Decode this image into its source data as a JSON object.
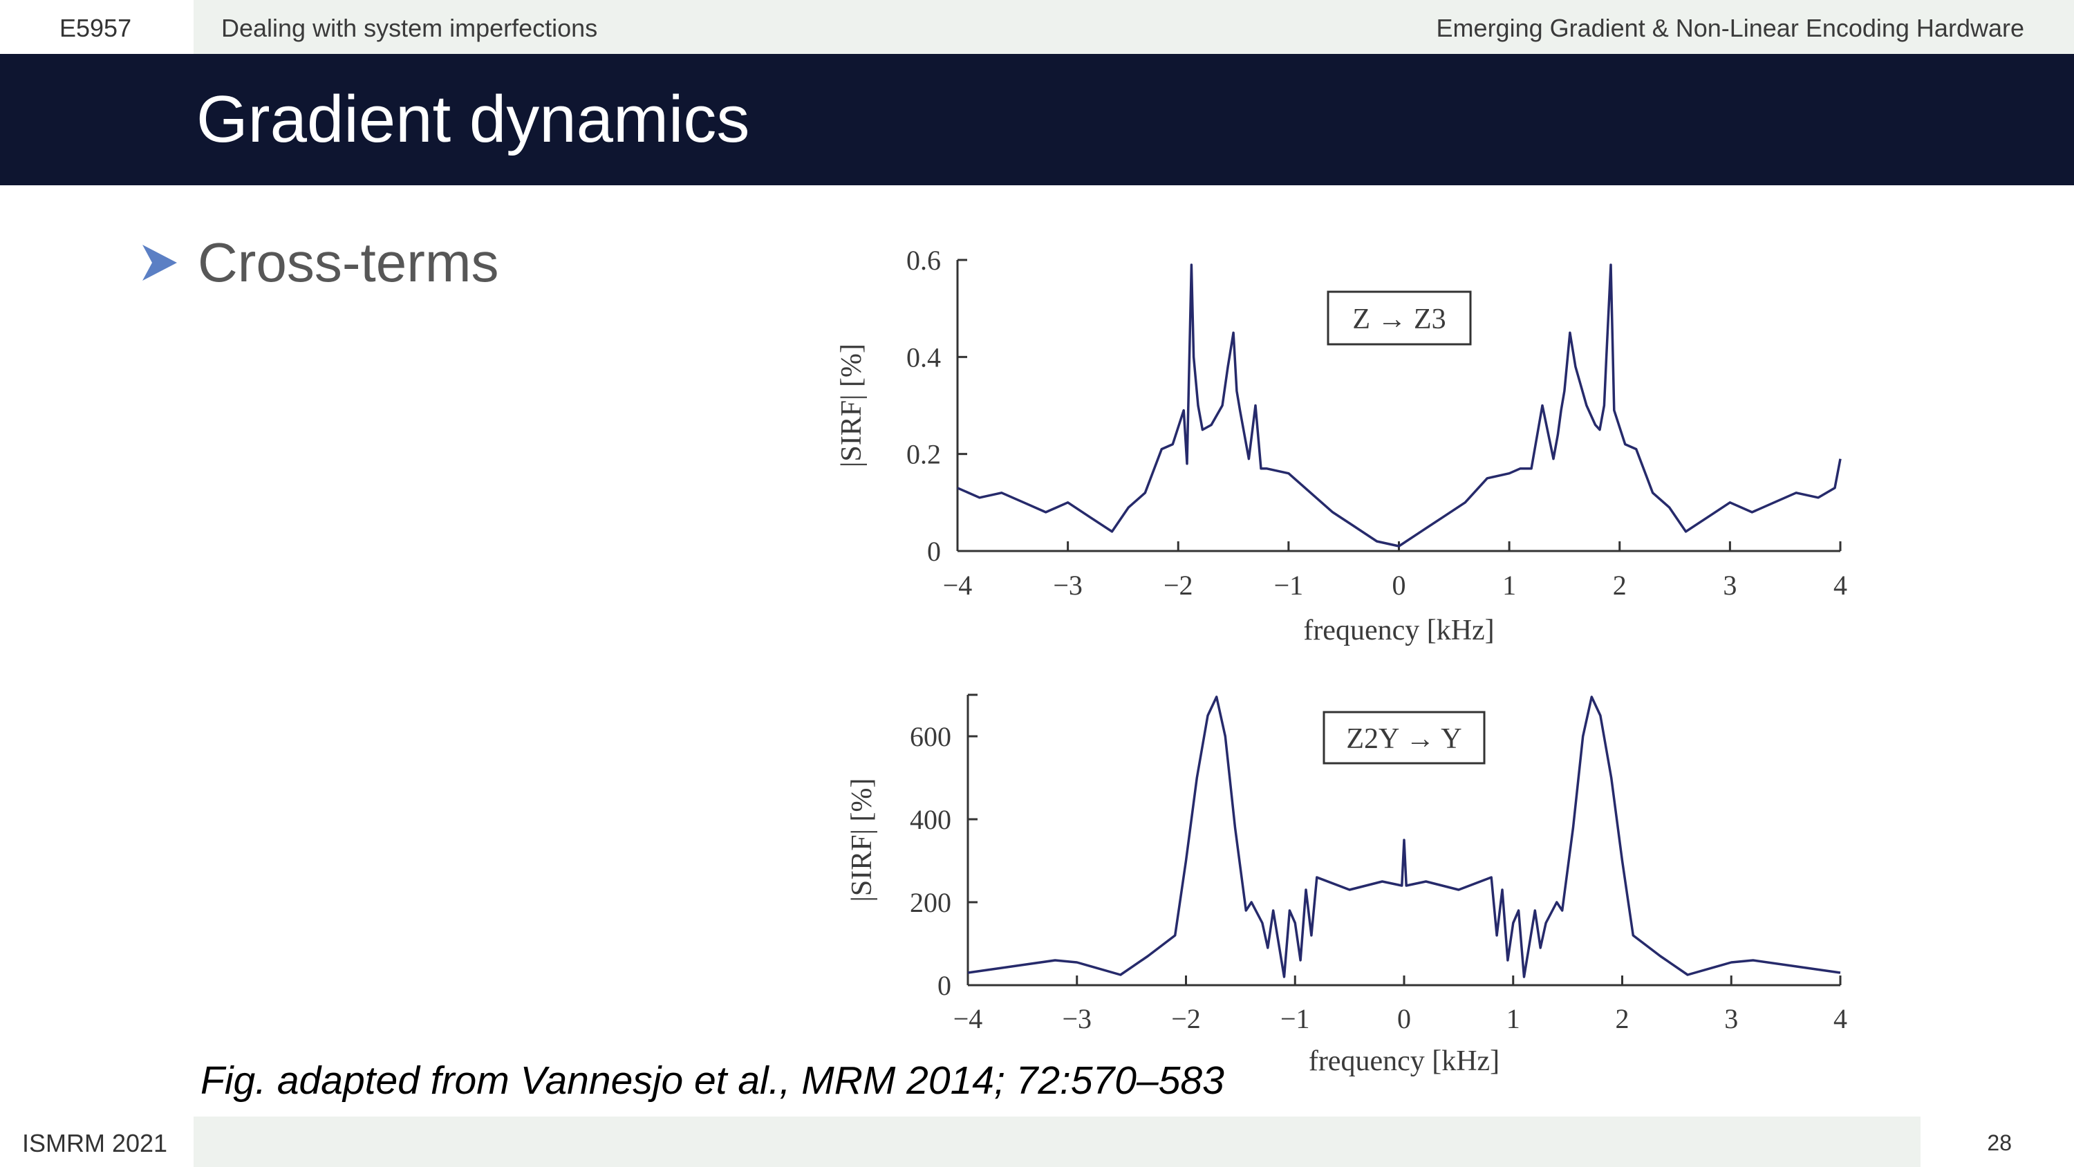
{
  "header": {
    "course_code": "E5957",
    "section": "Dealing with system imperfections",
    "course_title": "Emerging Gradient & Non-Linear Encoding Hardware"
  },
  "slide": {
    "title": "Gradient dynamics",
    "bullet": "Cross-terms",
    "caption": "Fig. adapted from Vannesjo et al., MRM 2014; 72:570–583"
  },
  "footer": {
    "conference": "ISMRM 2021",
    "page_number": "28"
  },
  "colors": {
    "title_bar": "#0e1530",
    "header_band": "#eef2ee",
    "bullet_arrow": "#5b7fc4",
    "plot_line": "#262a6b"
  },
  "icons": {
    "bullet": "arrowhead-icon"
  },
  "chart_data": [
    {
      "type": "line",
      "annotation": "Z → Z3",
      "xlabel": "frequency [kHz]",
      "ylabel": "|SIRF| [%]",
      "xlim": [
        -4,
        4
      ],
      "ylim": [
        0,
        0.6
      ],
      "xticks": [
        "−4",
        "−3",
        "−2",
        "−1",
        "0",
        "1",
        "2",
        "3",
        "4"
      ],
      "yticks": [
        "0",
        "0.2",
        "0.4",
        "0.6"
      ],
      "series": [
        {
          "x": [
            -4,
            -3.8,
            -3.6,
            -3.4,
            -3.2,
            -3.0,
            -2.8,
            -2.6,
            -2.45,
            -2.3,
            -2.15,
            -2.05,
            -1.95,
            -1.92,
            -1.88,
            -1.86,
            -1.82,
            -1.78,
            -1.7,
            -1.6,
            -1.55,
            -1.5,
            -1.47,
            -1.44,
            -1.4,
            -1.36,
            -1.3,
            -1.25,
            -1.2,
            -1.0,
            -0.8,
            -0.6,
            -0.4,
            -0.2,
            0,
            0.2,
            0.4,
            0.6,
            0.8,
            1.0,
            1.1,
            1.2,
            1.3,
            1.4,
            1.44,
            1.47,
            1.5,
            1.55,
            1.6,
            1.7,
            1.78,
            1.82,
            1.86,
            1.88,
            1.92,
            1.95,
            2.05,
            2.15,
            2.3,
            2.45,
            2.6,
            2.8,
            3.0,
            3.2,
            3.4,
            3.6,
            3.8,
            3.95,
            4.0
          ],
          "y": [
            0.13,
            0.11,
            0.12,
            0.1,
            0.08,
            0.1,
            0.07,
            0.04,
            0.09,
            0.12,
            0.21,
            0.22,
            0.29,
            0.18,
            0.59,
            0.4,
            0.3,
            0.25,
            0.26,
            0.3,
            0.38,
            0.45,
            0.33,
            0.29,
            0.24,
            0.19,
            0.3,
            0.17,
            0.17,
            0.16,
            0.12,
            0.08,
            0.05,
            0.02,
            0.01,
            0.04,
            0.07,
            0.1,
            0.15,
            0.16,
            0.17,
            0.17,
            0.3,
            0.19,
            0.24,
            0.29,
            0.33,
            0.45,
            0.38,
            0.3,
            0.26,
            0.25,
            0.3,
            0.4,
            0.59,
            0.29,
            0.22,
            0.21,
            0.12,
            0.09,
            0.04,
            0.07,
            0.1,
            0.08,
            0.1,
            0.12,
            0.11,
            0.13,
            0.19
          ]
        }
      ]
    },
    {
      "type": "line",
      "annotation": "Z2Y → Y",
      "xlabel": "frequency [kHz]",
      "ylabel": "|SIRF| [%]",
      "xlim": [
        -4,
        4
      ],
      "ylim": [
        0,
        700
      ],
      "xticks": [
        "−4",
        "−3",
        "−2",
        "−1",
        "0",
        "1",
        "2",
        "3",
        "4"
      ],
      "yticks": [
        "0",
        "200",
        "400",
        "600"
      ],
      "series": [
        {
          "x": [
            -4,
            -3.6,
            -3.2,
            -3.0,
            -2.6,
            -2.35,
            -2.1,
            -2.0,
            -1.9,
            -1.8,
            -1.72,
            -1.64,
            -1.55,
            -1.45,
            -1.4,
            -1.3,
            -1.25,
            -1.2,
            -1.15,
            -1.1,
            -1.05,
            -1.0,
            -0.95,
            -0.9,
            -0.85,
            -0.8,
            -0.5,
            -0.2,
            -0.02,
            0,
            0.02,
            0.2,
            0.5,
            0.8,
            0.85,
            0.9,
            0.95,
            1.0,
            1.05,
            1.1,
            1.15,
            1.2,
            1.25,
            1.3,
            1.4,
            1.45,
            1.55,
            1.64,
            1.72,
            1.8,
            1.9,
            2.0,
            2.1,
            2.35,
            2.6,
            3.0,
            3.2,
            3.6,
            4.0
          ],
          "y": [
            30,
            45,
            60,
            55,
            25,
            70,
            120,
            300,
            500,
            650,
            695,
            600,
            380,
            180,
            200,
            150,
            90,
            180,
            100,
            20,
            180,
            150,
            60,
            230,
            120,
            260,
            230,
            250,
            240,
            350,
            240,
            250,
            230,
            260,
            120,
            230,
            60,
            150,
            180,
            20,
            100,
            180,
            90,
            150,
            200,
            180,
            380,
            600,
            695,
            650,
            500,
            300,
            120,
            70,
            25,
            55,
            60,
            45,
            30
          ]
        }
      ]
    }
  ]
}
